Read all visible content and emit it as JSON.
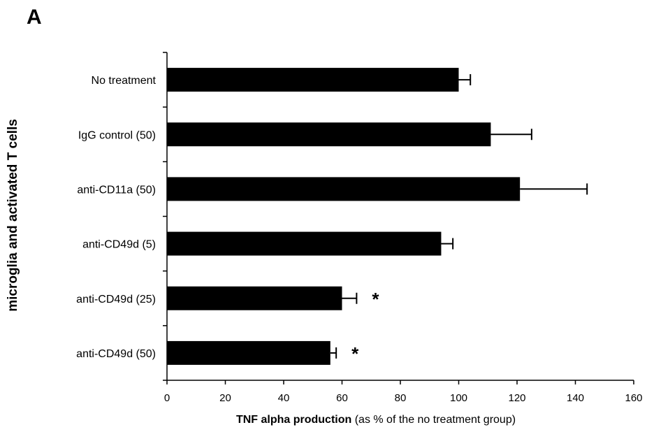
{
  "panel_letter": "A",
  "chart_data": {
    "type": "bar",
    "orientation": "horizontal",
    "categories": [
      "No treatment",
      "IgG control (50)",
      "anti-CD11a (50)",
      "anti-CD49d (5)",
      "anti-CD49d (25)",
      "anti-CD49d (50)"
    ],
    "values": [
      100,
      111,
      121,
      94,
      60,
      56
    ],
    "errors": [
      4,
      14,
      23,
      4,
      5,
      2
    ],
    "significance": [
      "",
      "",
      "",
      "",
      "*",
      "*"
    ],
    "xlim": [
      0,
      160
    ],
    "xticks": [
      0,
      20,
      40,
      60,
      80,
      100,
      120,
      140,
      160
    ],
    "xlabel_bold": "TNF alpha production",
    "xlabel_rest": " (as % of the no treatment group)",
    "ylabel": "microglia and activated T cells",
    "bar_color": "#000000"
  }
}
